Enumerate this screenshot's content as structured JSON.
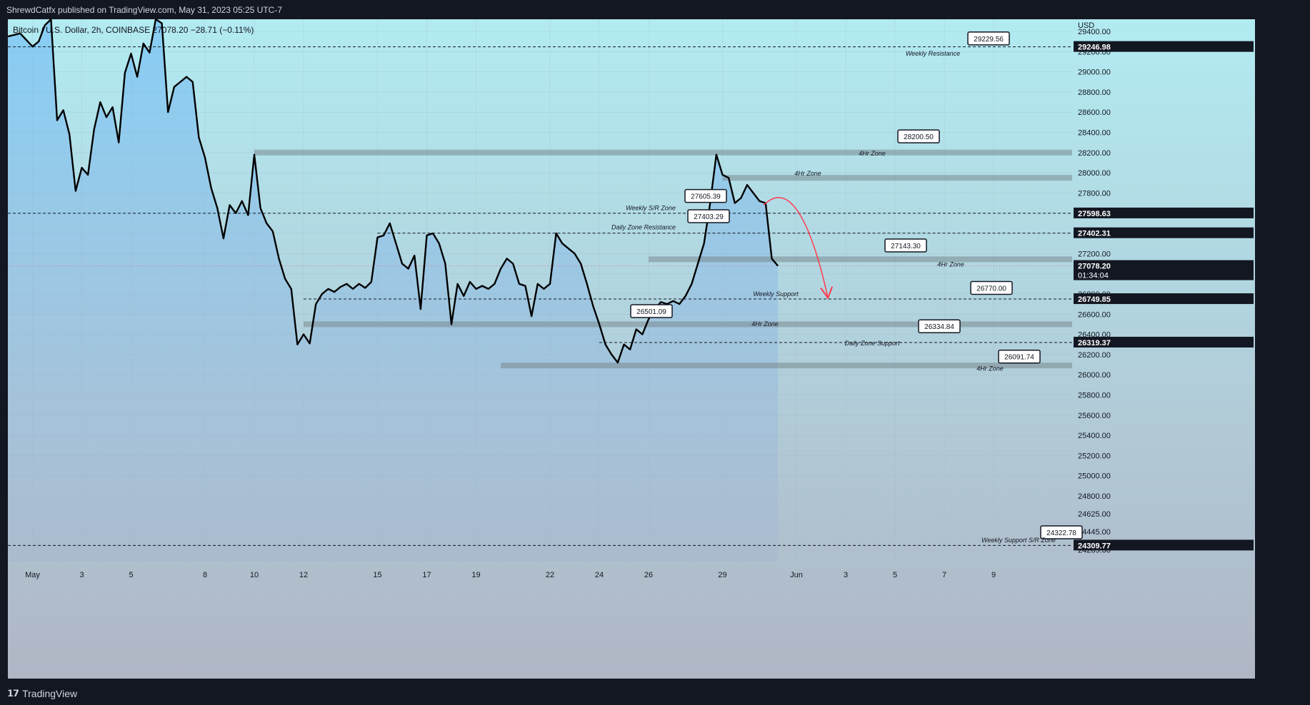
{
  "header": {
    "published_text": "ShrewdCatfx published on TradingView.com, May 31, 2023 05:25 UTC-7"
  },
  "legend": {
    "symbol": "Bitcoin / U.S. Dollar, 2h, COINBASE",
    "last": "27078.20",
    "change": "−28.71 (−0.11%)"
  },
  "footer": {
    "brand": "TradingView"
  },
  "colors": {
    "price_line": "#000000",
    "zone": "#7a8a90",
    "arrow": "#ff3b4e",
    "bg_top": "#b2ebf2",
    "bg_bottom": "#b0b6c5"
  },
  "chart_data": {
    "type": "line",
    "title": "",
    "currency": "USD",
    "ylim": [
      24150,
      29520
    ],
    "x_ticks": [
      "May",
      "3",
      "5",
      "8",
      "10",
      "12",
      "15",
      "17",
      "19",
      "22",
      "24",
      "26",
      "29",
      "Jun",
      "3",
      "5",
      "7",
      "9"
    ],
    "y_ticks": [
      "29400.00",
      "29200.00",
      "29000.00",
      "28800.00",
      "28600.00",
      "28400.00",
      "28200.00",
      "28000.00",
      "27800.00",
      "27600.00",
      "27400.00",
      "27200.00",
      "27000.00",
      "26800.00",
      "26600.00",
      "26400.00",
      "26200.00",
      "26000.00",
      "25800.00",
      "25600.00",
      "25400.00",
      "25200.00",
      "25000.00",
      "24800.00",
      "24625.00",
      "24445.00",
      "24265.00"
    ],
    "price_series": {
      "name": "BTCUSD",
      "points": [
        [
          "Apr 30",
          29350
        ],
        [
          "Apr 30 12h",
          29380
        ],
        [
          "May 1 00h",
          29250
        ],
        [
          "May 1 06h",
          29300
        ],
        [
          "May 1 12h",
          29460
        ],
        [
          "May 1 18h",
          29520
        ],
        [
          "May 2 00h",
          28520
        ],
        [
          "May 2 06h",
          28620
        ],
        [
          "May 2 12h",
          28380
        ],
        [
          "May 2 18h",
          27820
        ],
        [
          "May 3 00h",
          28050
        ],
        [
          "May 3 06h",
          27980
        ],
        [
          "May 3 12h",
          28430
        ],
        [
          "May 3 18h",
          28700
        ],
        [
          "May 4 00h",
          28550
        ],
        [
          "May 4 06h",
          28650
        ],
        [
          "May 4 12h",
          28300
        ],
        [
          "May 4 18h",
          28990
        ],
        [
          "May 5 00h",
          29180
        ],
        [
          "May 5 06h",
          28950
        ],
        [
          "May 5 12h",
          29280
        ],
        [
          "May 5 18h",
          29190
        ],
        [
          "May 6 00h",
          29520
        ],
        [
          "May 6 06h",
          29480
        ],
        [
          "May 6 12h",
          28600
        ],
        [
          "May 6 18h",
          28850
        ],
        [
          "May 7 00h",
          28900
        ],
        [
          "May 7 06h",
          28950
        ],
        [
          "May 7 12h",
          28900
        ],
        [
          "May 7 18h",
          28350
        ],
        [
          "May 8 00h",
          28150
        ],
        [
          "May 8 06h",
          27850
        ],
        [
          "May 8 12h",
          27650
        ],
        [
          "May 8 18h",
          27350
        ],
        [
          "May 9 00h",
          27680
        ],
        [
          "May 9 06h",
          27600
        ],
        [
          "May 9 12h",
          27720
        ],
        [
          "May 9 18h",
          27580
        ],
        [
          "May 10 00h",
          28180
        ],
        [
          "May 10 06h",
          27650
        ],
        [
          "May 10 12h",
          27500
        ],
        [
          "May 10 18h",
          27420
        ],
        [
          "May 11 00h",
          27150
        ],
        [
          "May 11 06h",
          26950
        ],
        [
          "May 11 12h",
          26850
        ],
        [
          "May 11 18h",
          26300
        ],
        [
          "May 12 00h",
          26400
        ],
        [
          "May 12 06h",
          26310
        ],
        [
          "May 12 12h",
          26700
        ],
        [
          "May 12 18h",
          26800
        ],
        [
          "May 13 00h",
          26850
        ],
        [
          "May 13 06h",
          26820
        ],
        [
          "May 13 12h",
          26870
        ],
        [
          "May 13 18h",
          26900
        ],
        [
          "May 14 00h",
          26850
        ],
        [
          "May 14 06h",
          26900
        ],
        [
          "May 14 12h",
          26860
        ],
        [
          "May 14 18h",
          26920
        ],
        [
          "May 15 00h",
          27360
        ],
        [
          "May 15 06h",
          27380
        ],
        [
          "May 15 12h",
          27500
        ],
        [
          "May 15 18h",
          27300
        ],
        [
          "May 16 00h",
          27100
        ],
        [
          "May 16 06h",
          27050
        ],
        [
          "May 16 12h",
          27180
        ],
        [
          "May 16 18h",
          26650
        ],
        [
          "May 17 00h",
          27380
        ],
        [
          "May 17 06h",
          27400
        ],
        [
          "May 17 12h",
          27300
        ],
        [
          "May 17 18h",
          27100
        ],
        [
          "May 18 00h",
          26500
        ],
        [
          "May 18 06h",
          26900
        ],
        [
          "May 18 12h",
          26780
        ],
        [
          "May 18 18h",
          26920
        ],
        [
          "May 19 00h",
          26850
        ],
        [
          "May 19 06h",
          26880
        ],
        [
          "May 19 12h",
          26850
        ],
        [
          "May 19 18h",
          26900
        ],
        [
          "May 20 00h",
          27050
        ],
        [
          "May 20 06h",
          27150
        ],
        [
          "May 20 12h",
          27100
        ],
        [
          "May 20 18h",
          26900
        ],
        [
          "May 21 00h",
          26880
        ],
        [
          "May 21 06h",
          26580
        ],
        [
          "May 21 12h",
          26900
        ],
        [
          "May 21 18h",
          26850
        ],
        [
          "May 22 00h",
          26900
        ],
        [
          "May 22 06h",
          27400
        ],
        [
          "May 22 12h",
          27300
        ],
        [
          "May 22 18h",
          27250
        ],
        [
          "May 23 00h",
          27200
        ],
        [
          "May 23 06h",
          27100
        ],
        [
          "May 23 12h",
          26900
        ],
        [
          "May 23 18h",
          26680
        ],
        [
          "May 24 00h",
          26500
        ],
        [
          "May 24 06h",
          26300
        ],
        [
          "May 24 12h",
          26200
        ],
        [
          "May 24 18h",
          26120
        ],
        [
          "May 25 00h",
          26300
        ],
        [
          "May 25 06h",
          26250
        ],
        [
          "May 25 12h",
          26450
        ],
        [
          "May 25 18h",
          26400
        ],
        [
          "May 26 00h",
          26550
        ],
        [
          "May 26 06h",
          26650
        ],
        [
          "May 26 12h",
          26720
        ],
        [
          "May 26 18h",
          26700
        ],
        [
          "May 27 00h",
          26730
        ],
        [
          "May 27 06h",
          26700
        ],
        [
          "May 27 12h",
          26780
        ],
        [
          "May 27 18h",
          26900
        ],
        [
          "May 28 00h",
          27100
        ],
        [
          "May 28 06h",
          27300
        ],
        [
          "May 28 12h",
          27700
        ],
        [
          "May 28 18h",
          28180
        ],
        [
          "May 29 00h",
          27980
        ],
        [
          "May 29 06h",
          27950
        ],
        [
          "May 29 12h",
          27700
        ],
        [
          "May 29 18h",
          27750
        ],
        [
          "May 30 00h",
          27880
        ],
        [
          "May 30 06h",
          27800
        ],
        [
          "May 30 12h",
          27720
        ],
        [
          "May 30 18h",
          27700
        ],
        [
          "May 31 00h",
          27150
        ],
        [
          "May 31 06h",
          27078
        ]
      ]
    },
    "price_labels": [
      {
        "value": 29246.98,
        "label": "29246.98"
      },
      {
        "value": 27598.63,
        "label": "27598.63"
      },
      {
        "value": 27402.31,
        "label": "27402.31"
      },
      {
        "value": 27078.2,
        "label": "27078.20",
        "sub": "01:34:04"
      },
      {
        "value": 26749.85,
        "label": "26749.85"
      },
      {
        "value": 26319.37,
        "label": "26319.37"
      },
      {
        "value": 24309.77,
        "label": "24309.77"
      }
    ],
    "horizontal_lines": [
      {
        "value": 29246.98,
        "style": "dashed",
        "from": "Apr 30"
      },
      {
        "value": 27598.63,
        "style": "dashed",
        "from": "Apr 30"
      },
      {
        "value": 27402.31,
        "style": "dashed",
        "from": "May 15"
      },
      {
        "value": 27078.2,
        "style": "dotted-red",
        "from": "Apr 30"
      },
      {
        "value": 26749.85,
        "style": "dashed",
        "from": "May 12"
      },
      {
        "value": 26319.37,
        "style": "dashed",
        "from": "May 24"
      },
      {
        "value": 24309.77,
        "style": "dashed",
        "from": "Apr 30"
      }
    ],
    "zones": [
      {
        "value": 28200.5,
        "from": "May 10"
      },
      {
        "value": 27950,
        "from": "May 29"
      },
      {
        "value": 27143.3,
        "from": "May 26"
      },
      {
        "value": 26500,
        "from": "May 12"
      },
      {
        "value": 26091.74,
        "from": "May 20"
      }
    ],
    "callouts": [
      {
        "label": "29229.56",
        "note": "Weekly Resistance"
      },
      {
        "label": "28200.50",
        "note": "4Hr Zone"
      },
      {
        "label": "27605.39",
        "note": "Weekly S/R Zone"
      },
      {
        "label": "27403.29",
        "note": "Daily Zone Resistance"
      },
      {
        "label": "27143.30",
        "note": "4Hr Zone"
      },
      {
        "label": "26770.00",
        "note": "Weekly Support"
      },
      {
        "label": "26501.09",
        "note": "4Hr Zone"
      },
      {
        "label": "26334.84",
        "note": "Daily Zone Support"
      },
      {
        "label": "26091.74",
        "note": "4Hr Zone"
      },
      {
        "label": "24322.78",
        "note": "Weekly Support S/R Zone"
      }
    ],
    "zone_labels": [
      "4Hr Zone"
    ]
  }
}
